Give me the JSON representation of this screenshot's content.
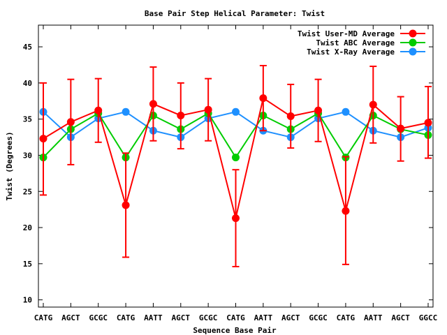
{
  "chart_data": {
    "type": "line",
    "title": "Base Pair Step Helical Parameter: Twist",
    "xlabel": "Sequence Base Pair",
    "ylabel": "Twist (Degrees)",
    "ylim": [
      9,
      48
    ],
    "yticks": [
      10,
      15,
      20,
      25,
      30,
      35,
      40,
      45
    ],
    "categories": [
      "CATG",
      "AGCT",
      "GCGC",
      "CATG",
      "AATT",
      "AGCT",
      "GCGC",
      "CATG",
      "AATT",
      "AGCT",
      "GCGC",
      "CATG",
      "AATT",
      "AGCT",
      "GGCC"
    ],
    "legend_position": "top-right",
    "grid": false,
    "series": [
      {
        "name": "Twist User-MD Average",
        "color": "#ff0000",
        "values": [
          32.3,
          34.6,
          36.2,
          23.1,
          37.1,
          35.5,
          36.3,
          21.3,
          37.9,
          35.4,
          36.2,
          22.3,
          37.0,
          33.7,
          34.5
        ],
        "error_low": [
          24.5,
          28.7,
          31.8,
          15.9,
          32.0,
          30.9,
          32.0,
          14.6,
          33.4,
          31.0,
          31.9,
          14.9,
          31.7,
          29.2,
          29.6
        ],
        "error_high": [
          40.0,
          40.5,
          40.6,
          30.3,
          42.2,
          40.0,
          40.6,
          28.0,
          42.4,
          39.8,
          40.5,
          29.8,
          42.3,
          38.1,
          39.5
        ]
      },
      {
        "name": "Twist ABC Average",
        "color": "#00cc00",
        "values": [
          29.7,
          33.6,
          35.8,
          29.7,
          35.5,
          33.6,
          35.8,
          29.7,
          35.5,
          33.6,
          35.8,
          29.7,
          35.5,
          33.6,
          32.8
        ]
      },
      {
        "name": "Twist X-Ray Average",
        "color": "#1e90ff",
        "values": [
          36.0,
          32.5,
          35.1,
          36.0,
          33.4,
          32.5,
          35.1,
          36.0,
          33.4,
          32.5,
          35.1,
          36.0,
          33.4,
          32.5,
          33.8
        ]
      }
    ]
  }
}
